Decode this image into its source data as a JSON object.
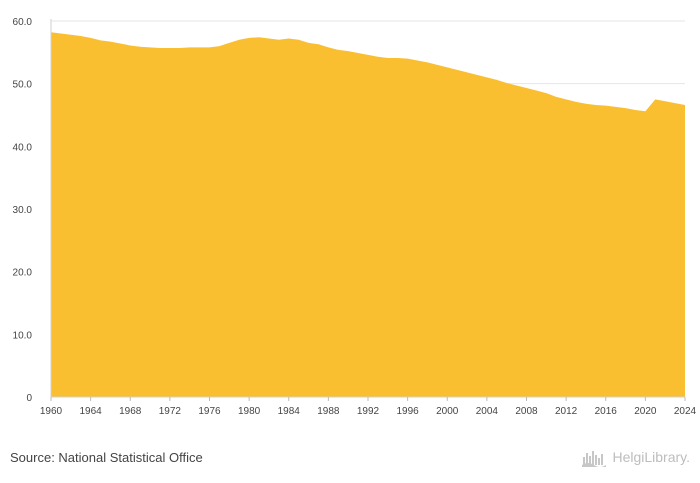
{
  "chart_data": {
    "type": "area",
    "title": "",
    "xlabel": "",
    "ylabel": "",
    "ylim": [
      0,
      60
    ],
    "yticks": [
      0,
      10,
      20,
      30,
      40,
      50,
      60
    ],
    "ytick_labels": [
      "0",
      "10.0",
      "20.0",
      "30.0",
      "40.0",
      "50.0",
      "60.0"
    ],
    "xlim": [
      1960,
      2024
    ],
    "xticks": [
      1960,
      1964,
      1968,
      1972,
      1976,
      1980,
      1984,
      1988,
      1992,
      1996,
      2000,
      2004,
      2008,
      2012,
      2016,
      2020,
      2024
    ],
    "xtick_labels": [
      "1960",
      "1964",
      "1968",
      "1972",
      "1976",
      "1980",
      "1984",
      "1988",
      "1992",
      "1996",
      "2000",
      "2004",
      "2008",
      "2012",
      "2016",
      "2020",
      "2024"
    ],
    "grid": "horizontal",
    "legend": "none",
    "fill_color": "#f9bf31",
    "series": [
      {
        "x": [
          1960,
          1961,
          1962,
          1963,
          1964,
          1965,
          1966,
          1967,
          1968,
          1969,
          1970,
          1971,
          1972,
          1973,
          1974,
          1975,
          1976,
          1977,
          1978,
          1979,
          1980,
          1981,
          1982,
          1983,
          1984,
          1985,
          1986,
          1987,
          1988,
          1989,
          1990,
          1991,
          1992,
          1993,
          1994,
          1995,
          1996,
          1997,
          1998,
          1999,
          2000,
          2001,
          2002,
          2003,
          2004,
          2005,
          2006,
          2007,
          2008,
          2009,
          2010,
          2011,
          2012,
          2013,
          2014,
          2015,
          2016,
          2017,
          2018,
          2019,
          2020,
          2021,
          2022,
          2023,
          2024
        ],
        "values": [
          58.2,
          58.0,
          57.8,
          57.6,
          57.3,
          56.9,
          56.7,
          56.4,
          56.1,
          55.9,
          55.8,
          55.7,
          55.7,
          55.7,
          55.8,
          55.8,
          55.8,
          56.0,
          56.5,
          57.0,
          57.3,
          57.4,
          57.2,
          57.0,
          57.2,
          57.0,
          56.5,
          56.3,
          55.8,
          55.4,
          55.2,
          54.9,
          54.6,
          54.3,
          54.1,
          54.1,
          54.0,
          53.7,
          53.4,
          53.0,
          52.6,
          52.2,
          51.8,
          51.4,
          51.0,
          50.6,
          50.1,
          49.7,
          49.3,
          48.9,
          48.5,
          47.9,
          47.5,
          47.1,
          46.8,
          46.6,
          46.5,
          46.3,
          46.1,
          45.8,
          45.6,
          47.5,
          47.2,
          46.9,
          46.6
        ]
      }
    ]
  },
  "footer": {
    "source": "Source: National Statistical Office",
    "brand": "HelgiLibrary."
  },
  "icons": {
    "brand_logo": "helgi-library-logo-icon"
  }
}
